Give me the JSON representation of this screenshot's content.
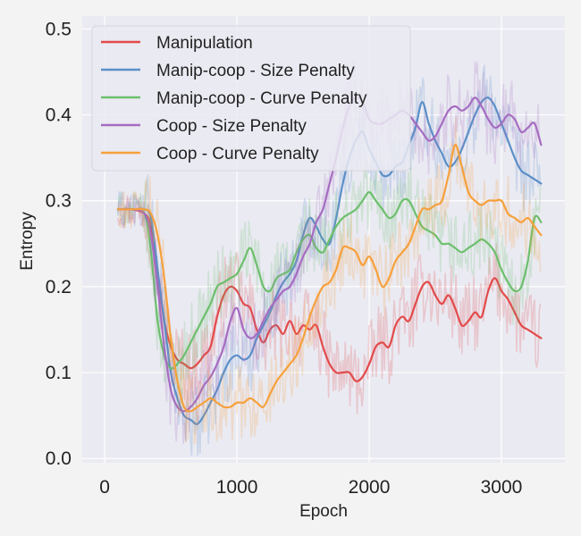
{
  "chart_data": {
    "type": "line",
    "title": "",
    "xlabel": "Epoch",
    "ylabel": "Entropy",
    "xlim": [
      -170,
      3480
    ],
    "ylim": [
      -0.005,
      0.515
    ],
    "xticks": [
      0,
      1000,
      2000,
      3000
    ],
    "xtick_labels": [
      "0",
      "1000",
      "2000",
      "3000"
    ],
    "yticks": [
      0.0,
      0.1,
      0.2,
      0.3,
      0.4,
      0.5
    ],
    "ytick_labels": [
      "0.0",
      "0.1",
      "0.2",
      "0.3",
      "0.4",
      "0.5"
    ],
    "grid": true,
    "legend_position": "top-left",
    "background": "#eaeaf2",
    "series": [
      {
        "name": "Manipulation",
        "color": "#e24a4a",
        "x": [
          100,
          200,
          300,
          350,
          400,
          450,
          500,
          550,
          600,
          650,
          700,
          750,
          800,
          850,
          900,
          950,
          1000,
          1050,
          1100,
          1150,
          1200,
          1250,
          1300,
          1350,
          1400,
          1450,
          1500,
          1550,
          1600,
          1650,
          1700,
          1750,
          1800,
          1850,
          1900,
          1950,
          2000,
          2050,
          2100,
          2150,
          2200,
          2250,
          2300,
          2350,
          2400,
          2450,
          2500,
          2550,
          2600,
          2650,
          2700,
          2750,
          2800,
          2850,
          2900,
          2950,
          3000,
          3050,
          3100,
          3150,
          3200,
          3250,
          3300
        ],
        "y": [
          0.29,
          0.29,
          0.285,
          0.27,
          0.215,
          0.16,
          0.13,
          0.115,
          0.11,
          0.105,
          0.11,
          0.12,
          0.13,
          0.165,
          0.19,
          0.2,
          0.195,
          0.18,
          0.175,
          0.15,
          0.135,
          0.15,
          0.155,
          0.145,
          0.16,
          0.145,
          0.155,
          0.15,
          0.155,
          0.13,
          0.11,
          0.1,
          0.1,
          0.1,
          0.09,
          0.095,
          0.11,
          0.13,
          0.135,
          0.13,
          0.155,
          0.165,
          0.16,
          0.18,
          0.2,
          0.205,
          0.19,
          0.18,
          0.19,
          0.175,
          0.155,
          0.16,
          0.17,
          0.165,
          0.195,
          0.21,
          0.195,
          0.185,
          0.17,
          0.155,
          0.15,
          0.145,
          0.14
        ]
      },
      {
        "name": "Manip-coop - Size Penalty",
        "color": "#5b8fc7",
        "x": [
          100,
          200,
          300,
          350,
          400,
          450,
          500,
          550,
          600,
          650,
          700,
          750,
          800,
          850,
          900,
          950,
          1000,
          1050,
          1100,
          1150,
          1200,
          1250,
          1300,
          1350,
          1400,
          1450,
          1500,
          1550,
          1600,
          1650,
          1700,
          1750,
          1800,
          1850,
          1900,
          1950,
          2000,
          2050,
          2100,
          2150,
          2200,
          2250,
          2300,
          2350,
          2400,
          2450,
          2500,
          2550,
          2600,
          2650,
          2700,
          2750,
          2800,
          2850,
          2900,
          2950,
          3000,
          3050,
          3100,
          3150,
          3200,
          3250,
          3300
        ],
        "y": [
          0.29,
          0.29,
          0.29,
          0.28,
          0.22,
          0.16,
          0.1,
          0.07,
          0.05,
          0.045,
          0.04,
          0.05,
          0.065,
          0.08,
          0.1,
          0.115,
          0.12,
          0.115,
          0.12,
          0.14,
          0.155,
          0.17,
          0.19,
          0.205,
          0.215,
          0.23,
          0.26,
          0.28,
          0.27,
          0.255,
          0.25,
          0.28,
          0.32,
          0.35,
          0.37,
          0.38,
          0.36,
          0.345,
          0.33,
          0.33,
          0.34,
          0.345,
          0.365,
          0.385,
          0.415,
          0.39,
          0.37,
          0.355,
          0.34,
          0.345,
          0.36,
          0.38,
          0.4,
          0.415,
          0.42,
          0.41,
          0.39,
          0.37,
          0.35,
          0.335,
          0.33,
          0.325,
          0.32
        ]
      },
      {
        "name": "Manip-coop - Curve Penalty",
        "color": "#6dbf6d",
        "x": [
          100,
          200,
          300,
          350,
          400,
          450,
          500,
          550,
          600,
          650,
          700,
          750,
          800,
          850,
          900,
          950,
          1000,
          1050,
          1100,
          1150,
          1200,
          1250,
          1300,
          1350,
          1400,
          1450,
          1500,
          1550,
          1600,
          1650,
          1700,
          1750,
          1800,
          1850,
          1900,
          1950,
          2000,
          2050,
          2100,
          2150,
          2200,
          2250,
          2300,
          2350,
          2400,
          2450,
          2500,
          2550,
          2600,
          2650,
          2700,
          2750,
          2800,
          2850,
          2900,
          2950,
          3000,
          3050,
          3100,
          3150,
          3200,
          3250,
          3300
        ],
        "y": [
          0.29,
          0.29,
          0.285,
          0.24,
          0.16,
          0.12,
          0.105,
          0.11,
          0.12,
          0.135,
          0.15,
          0.165,
          0.18,
          0.2,
          0.205,
          0.21,
          0.215,
          0.23,
          0.245,
          0.225,
          0.2,
          0.195,
          0.21,
          0.215,
          0.22,
          0.24,
          0.255,
          0.26,
          0.245,
          0.24,
          0.255,
          0.27,
          0.28,
          0.285,
          0.29,
          0.3,
          0.31,
          0.3,
          0.29,
          0.28,
          0.285,
          0.3,
          0.3,
          0.285,
          0.27,
          0.265,
          0.26,
          0.25,
          0.25,
          0.245,
          0.24,
          0.245,
          0.25,
          0.255,
          0.25,
          0.24,
          0.22,
          0.205,
          0.195,
          0.2,
          0.23,
          0.28,
          0.275
        ]
      },
      {
        "name": "Coop - Size Penalty",
        "color": "#a56cc1",
        "x": [
          100,
          200,
          300,
          350,
          400,
          450,
          500,
          550,
          600,
          650,
          700,
          750,
          800,
          850,
          900,
          950,
          1000,
          1050,
          1100,
          1150,
          1200,
          1250,
          1300,
          1350,
          1400,
          1450,
          1500,
          1550,
          1600,
          1650,
          1700,
          1750,
          1800,
          1850,
          1900,
          1950,
          2000,
          2050,
          2100,
          2150,
          2200,
          2250,
          2300,
          2350,
          2400,
          2450,
          2500,
          2550,
          2600,
          2650,
          2700,
          2750,
          2800,
          2850,
          2900,
          2950,
          3000,
          3050,
          3100,
          3150,
          3200,
          3250,
          3300
        ],
        "y": [
          0.29,
          0.29,
          0.285,
          0.26,
          0.2,
          0.13,
          0.08,
          0.06,
          0.055,
          0.06,
          0.07,
          0.085,
          0.095,
          0.11,
          0.13,
          0.16,
          0.175,
          0.15,
          0.14,
          0.145,
          0.16,
          0.175,
          0.185,
          0.195,
          0.2,
          0.215,
          0.235,
          0.25,
          0.275,
          0.29,
          0.32,
          0.35,
          0.385,
          0.41,
          0.42,
          0.415,
          0.395,
          0.39,
          0.39,
          0.395,
          0.4,
          0.405,
          0.4,
          0.39,
          0.38,
          0.37,
          0.375,
          0.39,
          0.405,
          0.41,
          0.405,
          0.41,
          0.42,
          0.41,
          0.395,
          0.385,
          0.39,
          0.4,
          0.395,
          0.38,
          0.385,
          0.39,
          0.365
        ]
      },
      {
        "name": "Coop - Curve Penalty",
        "color": "#f6a03c",
        "x": [
          100,
          200,
          300,
          350,
          400,
          450,
          500,
          550,
          600,
          650,
          700,
          750,
          800,
          850,
          900,
          950,
          1000,
          1050,
          1100,
          1150,
          1200,
          1250,
          1300,
          1350,
          1400,
          1450,
          1500,
          1550,
          1600,
          1650,
          1700,
          1750,
          1800,
          1850,
          1900,
          1950,
          2000,
          2050,
          2100,
          2150,
          2200,
          2250,
          2300,
          2350,
          2400,
          2450,
          2500,
          2550,
          2600,
          2650,
          2700,
          2750,
          2800,
          2850,
          2900,
          2950,
          3000,
          3050,
          3100,
          3150,
          3200,
          3250,
          3300
        ],
        "y": [
          0.29,
          0.29,
          0.29,
          0.285,
          0.26,
          0.21,
          0.14,
          0.09,
          0.06,
          0.055,
          0.06,
          0.065,
          0.07,
          0.065,
          0.06,
          0.06,
          0.065,
          0.065,
          0.07,
          0.065,
          0.06,
          0.075,
          0.09,
          0.1,
          0.11,
          0.12,
          0.14,
          0.165,
          0.185,
          0.2,
          0.205,
          0.22,
          0.245,
          0.245,
          0.24,
          0.225,
          0.235,
          0.22,
          0.2,
          0.21,
          0.23,
          0.24,
          0.25,
          0.27,
          0.29,
          0.29,
          0.295,
          0.3,
          0.33,
          0.365,
          0.34,
          0.31,
          0.3,
          0.295,
          0.3,
          0.3,
          0.3,
          0.285,
          0.28,
          0.275,
          0.28,
          0.27,
          0.26
        ]
      }
    ]
  }
}
